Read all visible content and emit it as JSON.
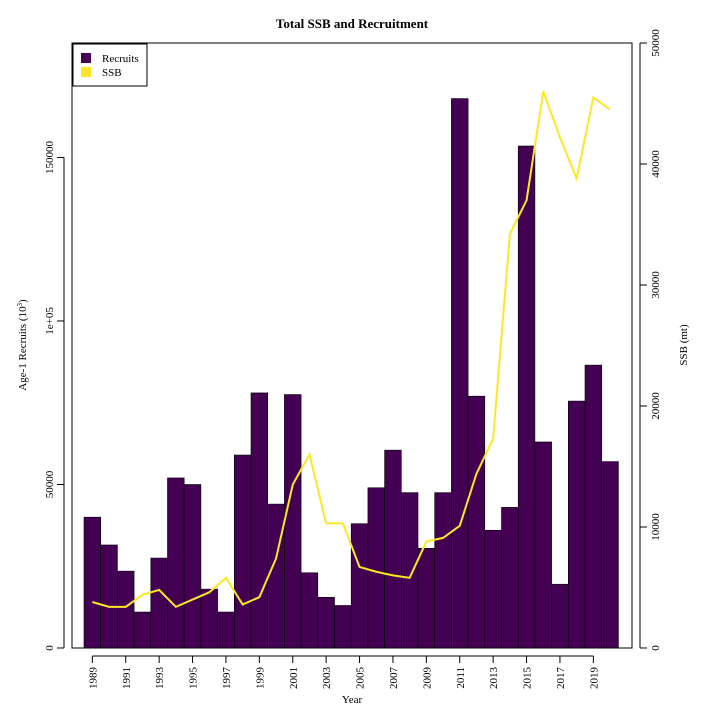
{
  "chart_data": {
    "type": "bar",
    "title": "Total SSB and Recruitment",
    "xlabel": "Year",
    "ylabel": "Age-1 Recruits (10",
    "ylabel_sup": "3",
    "ylabel_end": ")",
    "y2label": "SSB (mt)",
    "ylim": [
      0,
      185000
    ],
    "y2lim": [
      0,
      50000
    ],
    "yticks": [
      0,
      50000,
      100000,
      150000
    ],
    "ytick_labels": [
      "0",
      "50000",
      "1e+05",
      "150000"
    ],
    "y2ticks": [
      0,
      10000,
      20000,
      30000,
      40000,
      50000
    ],
    "y2tick_labels": [
      "0",
      "10000",
      "20000",
      "30000",
      "40000",
      "50000"
    ],
    "xtick_labels": [
      "1989",
      "1991",
      "1993",
      "1995",
      "1997",
      "1999",
      "2001",
      "2003",
      "2005",
      "2007",
      "2009",
      "2011",
      "2013",
      "2015",
      "2017",
      "2019"
    ],
    "categories": [
      "1989",
      "1990",
      "1991",
      "1992",
      "1993",
      "1994",
      "1995",
      "1996",
      "1997",
      "1998",
      "1999",
      "2000",
      "2001",
      "2002",
      "2003",
      "2004",
      "2005",
      "2006",
      "2007",
      "2008",
      "2009",
      "2010",
      "2011",
      "2012",
      "2013",
      "2014",
      "2015",
      "2016",
      "2017",
      "2018",
      "2019",
      "2020"
    ],
    "legend": {
      "position": "top-left",
      "entries": [
        "Recruits",
        "SSB"
      ]
    },
    "series": [
      {
        "name": "Recruits",
        "type": "bar",
        "color": "#440154",
        "values": [
          40000,
          31500,
          23500,
          11000,
          27500,
          52000,
          50000,
          18000,
          11000,
          59000,
          78000,
          44000,
          77500,
          23000,
          15500,
          13000,
          38000,
          49000,
          60500,
          47500,
          30500,
          47500,
          168000,
          77000,
          36000,
          43000,
          153500,
          63000,
          19500,
          75500,
          86500,
          57000
        ]
      },
      {
        "name": "SSB",
        "type": "line",
        "axis": "right",
        "color": "#FDE725",
        "values": [
          3800,
          3400,
          3400,
          4400,
          4800,
          3400,
          4000,
          4600,
          5800,
          3600,
          4200,
          7400,
          13500,
          16000,
          10300,
          10300,
          6700,
          6300,
          6000,
          5800,
          8800,
          9100,
          10100,
          14400,
          17300,
          34200,
          37000,
          46000,
          42200,
          38800,
          45500,
          44500
        ]
      }
    ]
  }
}
